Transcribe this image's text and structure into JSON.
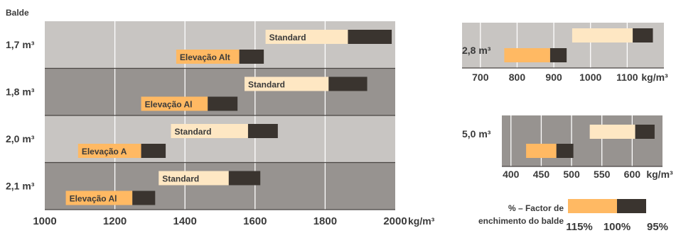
{
  "chart_data": [
    {
      "type": "bar",
      "ylabel": "Balde",
      "xlabel": "kg/m³",
      "xlim": [
        1000,
        2000
      ],
      "xticks": [
        1000,
        1200,
        1400,
        1600,
        1800,
        2000
      ],
      "grid": true,
      "rows": [
        {
          "bucket": "1,7 m³",
          "bars": [
            {
              "name": "Standard",
              "start": 1630,
              "mid": 1865,
              "end": 1990
            },
            {
              "name": "Elevação Alt",
              "start": 1375,
              "mid": 1555,
              "end": 1625
            }
          ]
        },
        {
          "bucket": "1,8 m³",
          "bars": [
            {
              "name": "Standard",
              "start": 1570,
              "mid": 1810,
              "end": 1920
            },
            {
              "name": "Elevação Al",
              "start": 1275,
              "mid": 1465,
              "end": 1550
            }
          ]
        },
        {
          "bucket": "2,0 m³",
          "bars": [
            {
              "name": "Standard",
              "start": 1360,
              "mid": 1580,
              "end": 1665
            },
            {
              "name": "Elevação A",
              "start": 1095,
              "mid": 1275,
              "end": 1345
            }
          ]
        },
        {
          "bucket": "2,1 m³",
          "bars": [
            {
              "name": "Standard",
              "start": 1325,
              "mid": 1525,
              "end": 1615
            },
            {
              "name": "Elevação Al",
              "start": 1060,
              "mid": 1250,
              "end": 1315
            }
          ]
        }
      ]
    },
    {
      "type": "bar",
      "bucket": "2,8 m³",
      "xlim": [
        650,
        1200
      ],
      "xticks": [
        700,
        800,
        900,
        1000,
        1100
      ],
      "unit": "kg/m³",
      "bars": [
        {
          "start": 950,
          "mid": 1115,
          "end": 1170
        },
        {
          "start": 765,
          "mid": 890,
          "end": 935
        }
      ]
    },
    {
      "type": "bar",
      "bucket": "5,0 m³",
      "xlim": [
        385,
        650
      ],
      "xticks": [
        400,
        450,
        500,
        550,
        600
      ],
      "unit": "kg/m³",
      "bars": [
        {
          "start": 530,
          "mid": 605,
          "end": 637
        },
        {
          "start": 425,
          "mid": 475,
          "end": 503
        }
      ]
    }
  ],
  "legend": {
    "label_line1": "% – Factor de",
    "label_line2": "enchimento do balde",
    "ticks": [
      "115%",
      "100%",
      "95%"
    ]
  },
  "colors": {
    "light_band": "#c8c5c2",
    "dark_band": "#979390",
    "cream": "#fee7c3",
    "orange": "#ffb963",
    "dark": "#3a342f",
    "text": "#3a3a3a"
  }
}
